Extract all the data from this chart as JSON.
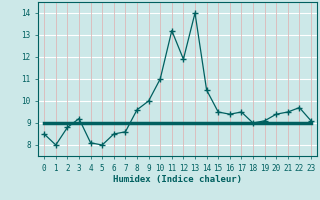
{
  "xlabel": "Humidex (Indice chaleur)",
  "bg_color": "#cce8e8",
  "plot_bg_color": "#cce8e8",
  "grid_color": "#ffffff",
  "grid_color_minor": "#e8c8c8",
  "line_color": "#006060",
  "xlim": [
    -0.5,
    23.5
  ],
  "ylim": [
    7.5,
    14.5
  ],
  "xticks": [
    0,
    1,
    2,
    3,
    4,
    5,
    6,
    7,
    8,
    9,
    10,
    11,
    12,
    13,
    14,
    15,
    16,
    17,
    18,
    19,
    20,
    21,
    22,
    23
  ],
  "yticks": [
    8,
    9,
    10,
    11,
    12,
    13,
    14
  ],
  "series1_x": [
    0,
    1,
    2,
    3,
    4,
    5,
    6,
    7,
    8,
    9,
    10,
    11,
    12,
    13,
    14,
    15,
    16,
    17,
    18,
    19,
    20,
    21,
    22,
    23
  ],
  "series1_y": [
    8.5,
    8.0,
    8.8,
    9.2,
    8.1,
    8.0,
    8.5,
    8.6,
    9.6,
    10.0,
    11.0,
    13.2,
    11.9,
    14.0,
    10.5,
    9.5,
    9.4,
    9.5,
    9.0,
    9.1,
    9.4,
    9.5,
    9.7,
    9.1
  ],
  "series2_x": [
    0,
    23
  ],
  "series2_y": [
    9.0,
    9.0
  ],
  "xlabel_fontsize": 6.5,
  "tick_fontsize": 5.5
}
